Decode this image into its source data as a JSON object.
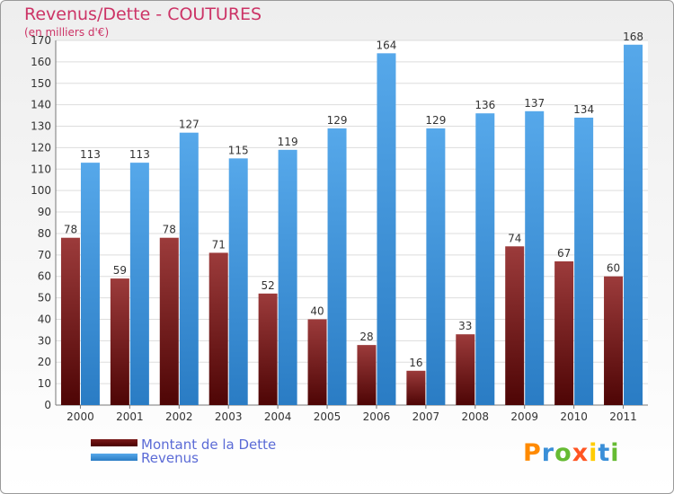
{
  "header": {
    "title": "Revenus/Dette - COUTURES",
    "subtitle": "(en milliers d'€)"
  },
  "colors": {
    "dette": "#8b2a2a",
    "revenus": "#3e93d8",
    "title": "#cc3366",
    "legend_text": "#5b6bd6"
  },
  "legend": {
    "items": [
      {
        "label": "Montant de la Dette",
        "color": "#6b0f0f"
      },
      {
        "label": "Revenus",
        "color": "#3e93d8"
      }
    ],
    "placement": "bottom-left"
  },
  "logo": {
    "text": "Proxiti",
    "letter_colors": [
      "#ff8a00",
      "#3a8fd8",
      "#66bb33",
      "#ff5522",
      "#ffcc00",
      "#3a8fd8",
      "#66bb33"
    ]
  },
  "chart_data": {
    "type": "bar",
    "title": "Revenus/Dette - COUTURES",
    "subtitle": "(en milliers d'€)",
    "categories": [
      "2000",
      "2001",
      "2002",
      "2003",
      "2004",
      "2005",
      "2006",
      "2007",
      "2008",
      "2009",
      "2010",
      "2011"
    ],
    "series": [
      {
        "name": "Montant de la Dette",
        "values": [
          78,
          59,
          78,
          71,
          52,
          40,
          28,
          16,
          33,
          74,
          67,
          60
        ]
      },
      {
        "name": "Revenus",
        "values": [
          113,
          113,
          127,
          115,
          119,
          129,
          164,
          129,
          136,
          137,
          134,
          168
        ]
      }
    ],
    "ylim": [
      0,
      170
    ],
    "yticks": [
      0,
      10,
      20,
      30,
      40,
      50,
      60,
      70,
      80,
      90,
      100,
      110,
      120,
      130,
      140,
      150,
      160,
      170
    ],
    "grid": true,
    "data_labels": true
  }
}
